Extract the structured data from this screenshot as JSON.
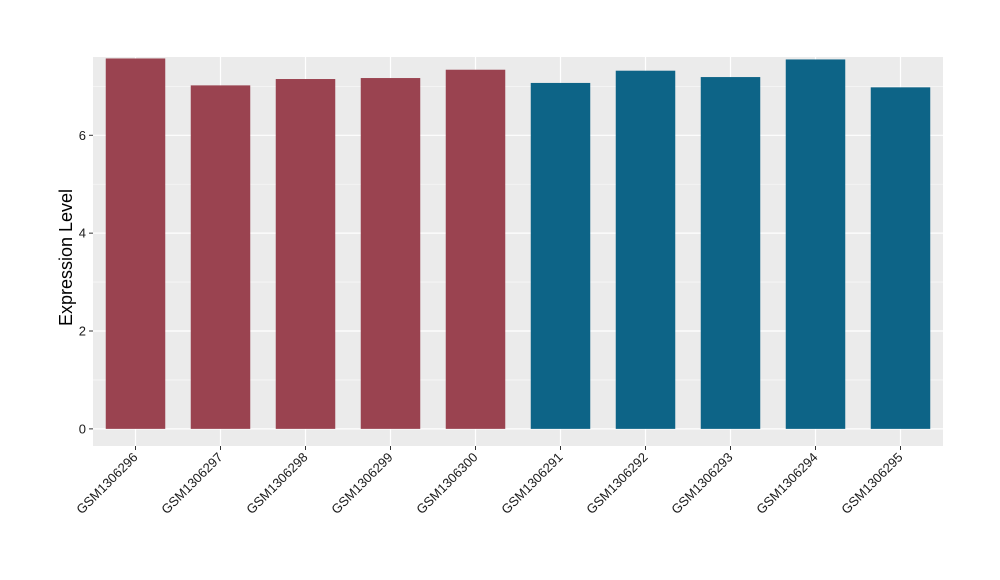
{
  "chart_data": {
    "type": "bar",
    "categories": [
      "GSM1306296",
      "GSM1306297",
      "GSM1306298",
      "GSM1306299",
      "GSM1306300",
      "GSM1306291",
      "GSM1306292",
      "GSM1306293",
      "GSM1306294",
      "GSM1306295"
    ],
    "values": [
      7.57,
      7.02,
      7.15,
      7.17,
      7.34,
      7.07,
      7.32,
      7.19,
      7.55,
      6.98
    ],
    "bar_groups": [
      "a",
      "a",
      "a",
      "a",
      "a",
      "b",
      "b",
      "b",
      "b",
      "b"
    ],
    "group_colors": {
      "a": "#9a4350",
      "b": "#0d6487"
    },
    "title": "",
    "xlabel": "",
    "ylabel": "Expression Level",
    "ylim": [
      -0.35,
      7.6
    ],
    "yticks": [
      0,
      2,
      4,
      6
    ],
    "grid": true,
    "legend": "none",
    "panel_color": "#ebebeb"
  }
}
